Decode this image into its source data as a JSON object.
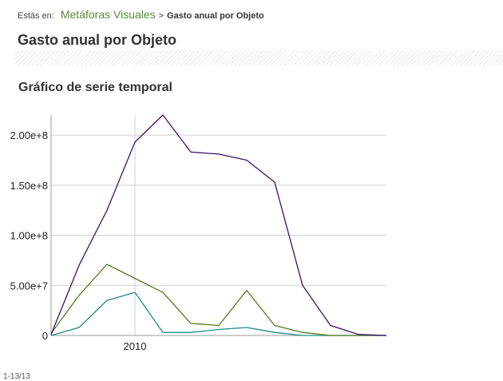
{
  "breadcrumb": {
    "prefix": "Estás en:",
    "link": "Metáforas Visuales",
    "separator": ">",
    "current": "Gasto anual por Objeto"
  },
  "page": {
    "title": "Gasto anual por Objeto"
  },
  "footer": {
    "note": "1-13/13"
  },
  "chart_data": {
    "type": "line",
    "title": "Gráfico de serie temporal",
    "xlabel": "",
    "ylabel": "",
    "x": [
      2007,
      2008,
      2009,
      2010,
      2011,
      2012,
      2013,
      2014,
      2015,
      2016,
      2017,
      2018,
      2019
    ],
    "x_tick_values": [
      2010
    ],
    "x_tick_labels": [
      "2010"
    ],
    "y_tick_values": [
      0,
      50000000,
      100000000,
      150000000,
      200000000
    ],
    "y_tick_labels": [
      "0",
      "5.00e+7",
      "1.00e+8",
      "1.50e+8",
      "2.00e+8"
    ],
    "ylim": [
      0,
      220000000
    ],
    "xlim": [
      2007,
      2019
    ],
    "grid": true,
    "series": [
      {
        "color": "#3f0f6e",
        "values": [
          1000000,
          70000000,
          125000000,
          193000000,
          220000000,
          183000000,
          181000000,
          175000000,
          153000000,
          50000000,
          10000000,
          1000000,
          0
        ]
      },
      {
        "color": "#4e7d1e",
        "values": [
          2000000,
          40000000,
          71000000,
          57000000,
          43000000,
          12000000,
          10000000,
          45000000,
          10000000,
          3000000,
          0,
          0,
          0
        ]
      },
      {
        "color": "#1f8a8a",
        "values": [
          0,
          8000000,
          35000000,
          43000000,
          3000000,
          3000000,
          6000000,
          8000000,
          3000000,
          0,
          0,
          0,
          0
        ]
      }
    ]
  }
}
